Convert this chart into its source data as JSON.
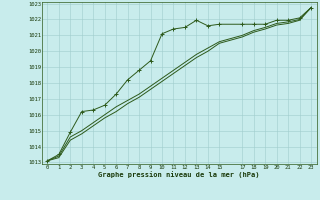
{
  "xlabel": "Graphe pression niveau de la mer (hPa)",
  "background_color": "#c8ecec",
  "grid_color": "#a0cccc",
  "line_color": "#2d5a1b",
  "ylim": [
    1013,
    1023
  ],
  "xlim": [
    -0.5,
    23.5
  ],
  "yticks": [
    1013,
    1014,
    1015,
    1016,
    1017,
    1018,
    1019,
    1020,
    1021,
    1022,
    1023
  ],
  "xticks": [
    0,
    1,
    2,
    3,
    4,
    5,
    6,
    7,
    8,
    9,
    10,
    11,
    12,
    13,
    14,
    15,
    17,
    18,
    19,
    20,
    21,
    22,
    23
  ],
  "series1_x": [
    0,
    1,
    2,
    3,
    4,
    5,
    6,
    7,
    8,
    9,
    10,
    11,
    12,
    13,
    14,
    15,
    17,
    18,
    19,
    20,
    21,
    22,
    23
  ],
  "series1_y": [
    1013.1,
    1013.5,
    1014.9,
    1016.2,
    1016.3,
    1016.6,
    1017.3,
    1018.2,
    1018.8,
    1019.4,
    1021.1,
    1021.4,
    1021.5,
    1021.95,
    1021.6,
    1021.7,
    1021.7,
    1021.7,
    1021.7,
    1021.95,
    1021.95,
    1022.1,
    1022.75
  ],
  "series2_x": [
    0,
    1,
    2,
    3,
    4,
    5,
    6,
    7,
    8,
    9,
    10,
    11,
    12,
    13,
    14,
    15,
    17,
    18,
    19,
    20,
    21,
    22,
    23
  ],
  "series2_y": [
    1013.1,
    1013.4,
    1014.6,
    1015.0,
    1015.5,
    1016.0,
    1016.5,
    1016.9,
    1017.3,
    1017.8,
    1018.3,
    1018.8,
    1019.3,
    1019.8,
    1020.2,
    1020.6,
    1021.0,
    1021.3,
    1021.5,
    1021.75,
    1021.85,
    1022.0,
    1022.75
  ],
  "series3_x": [
    0,
    1,
    2,
    3,
    4,
    5,
    6,
    7,
    8,
    9,
    10,
    11,
    12,
    13,
    14,
    15,
    17,
    18,
    19,
    20,
    21,
    22,
    23
  ],
  "series3_y": [
    1013.1,
    1013.3,
    1014.4,
    1014.8,
    1015.3,
    1015.8,
    1016.2,
    1016.7,
    1017.1,
    1017.6,
    1018.1,
    1018.6,
    1019.1,
    1019.6,
    1020.0,
    1020.5,
    1020.9,
    1021.2,
    1021.4,
    1021.65,
    1021.75,
    1021.95,
    1022.75
  ]
}
